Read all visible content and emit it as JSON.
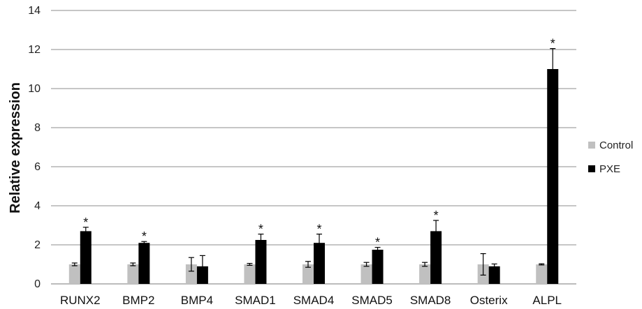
{
  "chart_data": {
    "type": "bar",
    "title": "",
    "xlabel": "",
    "ylabel": "Relative expression",
    "ylim": [
      0,
      14
    ],
    "yticks": [
      0,
      2,
      4,
      6,
      8,
      10,
      12,
      14
    ],
    "grid": true,
    "legend_position": "right",
    "categories": [
      "RUNX2",
      "BMP2",
      "BMP4",
      "SMAD1",
      "SMAD4",
      "SMAD5",
      "SMAD8",
      "Osterix",
      "ALPL"
    ],
    "series": [
      {
        "name": "Control",
        "color": "#c0c0c0",
        "values": [
          1.0,
          1.0,
          1.0,
          1.0,
          1.0,
          1.0,
          1.0,
          1.0,
          1.0
        ],
        "errors": [
          0.07,
          0.07,
          0.35,
          0.05,
          0.15,
          0.1,
          0.1,
          0.55,
          0.03
        ]
      },
      {
        "name": "PXE",
        "color": "#000000",
        "values": [
          2.7,
          2.1,
          0.9,
          2.25,
          2.1,
          1.75,
          2.7,
          0.9,
          11.0
        ],
        "errors": [
          0.2,
          0.07,
          0.55,
          0.3,
          0.45,
          0.12,
          0.55,
          0.12,
          1.05
        ]
      }
    ],
    "significance": [
      "*",
      "*",
      "",
      "*",
      "*",
      "*",
      "*",
      "",
      "*"
    ]
  }
}
